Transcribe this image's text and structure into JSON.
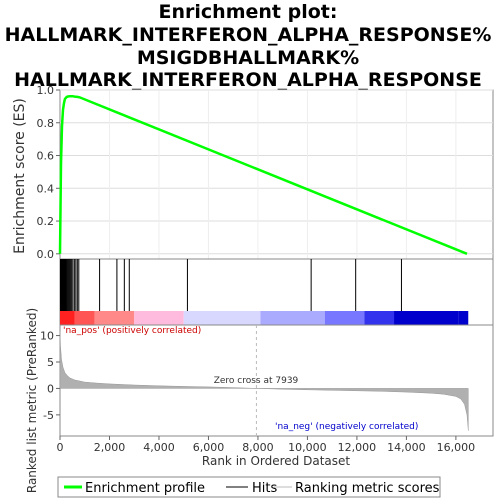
{
  "title_lines": [
    "Enrichment plot:",
    "HALLMARK_INTERFERON_ALPHA_RESPONSE%",
    "MSIGDBHALLMARK%",
    "HALLMARK_INTERFERON_ALPHA_RESPONSE"
  ],
  "colors": {
    "es_line": "#00ff00",
    "hit": "#000000",
    "metric_fill": "#b0b0b0",
    "pos_label": "#cc0000",
    "neg_label": "#0000cc",
    "zero_cross_line": "#bbbbbb"
  },
  "chart_data": [
    {
      "type": "line",
      "name": "enrichment-score-panel",
      "ylabel": "Enrichment score (ES)",
      "xlim": [
        0,
        17500
      ],
      "ylim": [
        -0.05,
        1.0
      ],
      "yticks": [
        "0.0",
        "0.2",
        "0.4",
        "0.6",
        "0.8",
        "1.0"
      ],
      "ytick_values": [
        0.0,
        0.2,
        0.4,
        0.6,
        0.8,
        1.0
      ],
      "grid": true,
      "series": [
        {
          "name": "Enrichment profile",
          "x": [
            0,
            40,
            80,
            120,
            160,
            200,
            250,
            300,
            400,
            500,
            600,
            700,
            800,
            16450
          ],
          "y": [
            0.0,
            0.55,
            0.78,
            0.88,
            0.92,
            0.945,
            0.955,
            0.96,
            0.962,
            0.962,
            0.96,
            0.958,
            0.955,
            0.0
          ]
        }
      ]
    },
    {
      "type": "hits",
      "name": "hits-panel",
      "xlim": [
        0,
        17500
      ],
      "hit_positions": [
        20,
        45,
        70,
        90,
        110,
        130,
        150,
        170,
        190,
        210,
        240,
        270,
        300,
        340,
        380,
        420,
        470,
        520,
        580,
        640,
        700,
        760,
        1600,
        2300,
        2600,
        2800,
        5150,
        10150,
        11950,
        13800
      ],
      "gradient_colors": [
        "#ff2020",
        "#ff5555",
        "#ff8888",
        "#ffbbdd",
        "#d8d8ff",
        "#aaaaff",
        "#7777ff",
        "#3333ee",
        "#0000cc"
      ]
    },
    {
      "type": "area",
      "name": "ranking-metric-panel",
      "xlabel": "Rank in Ordered Dataset",
      "ylabel": "Ranked list metric (PreRanked)",
      "xlim": [
        0,
        17500
      ],
      "ylim": [
        -9,
        12
      ],
      "xticks": [
        "0",
        "2,000",
        "4,000",
        "6,000",
        "8,000",
        "10,000",
        "12,000",
        "14,000",
        "16,000"
      ],
      "xtick_values": [
        0,
        2000,
        4000,
        6000,
        8000,
        10000,
        12000,
        14000,
        16000
      ],
      "yticks": [
        "-5",
        "0",
        "5",
        "10"
      ],
      "ytick_values": [
        -5,
        0,
        5,
        10
      ],
      "series": [
        {
          "name": "Ranking metric scores",
          "x": [
            0,
            20,
            60,
            120,
            200,
            300,
            400,
            600,
            800,
            1000,
            1500,
            2000,
            3000,
            4000,
            5000,
            6000,
            7000,
            7939,
            9000,
            10000,
            11000,
            12000,
            13000,
            14000,
            15000,
            15500,
            16000,
            16200,
            16350,
            16450,
            16500
          ],
          "y": [
            10.8,
            8.0,
            5.5,
            4.0,
            3.0,
            2.4,
            2.0,
            1.6,
            1.4,
            1.2,
            1.0,
            0.85,
            0.65,
            0.5,
            0.38,
            0.28,
            0.15,
            0.0,
            -0.15,
            -0.25,
            -0.35,
            -0.45,
            -0.55,
            -0.7,
            -0.9,
            -1.1,
            -1.5,
            -2.0,
            -3.0,
            -5.0,
            -8.0
          ]
        }
      ],
      "zero_cross": 7939,
      "annotations": {
        "zero_cross_label": "Zero cross at 7939",
        "pos_label": "'na_pos' (positively correlated)",
        "neg_label": "'na_neg' (negatively correlated)"
      }
    }
  ],
  "legend": {
    "placement": "bottom",
    "items": [
      "Enrichment profile",
      "Hits",
      "Ranking metric scores"
    ]
  }
}
